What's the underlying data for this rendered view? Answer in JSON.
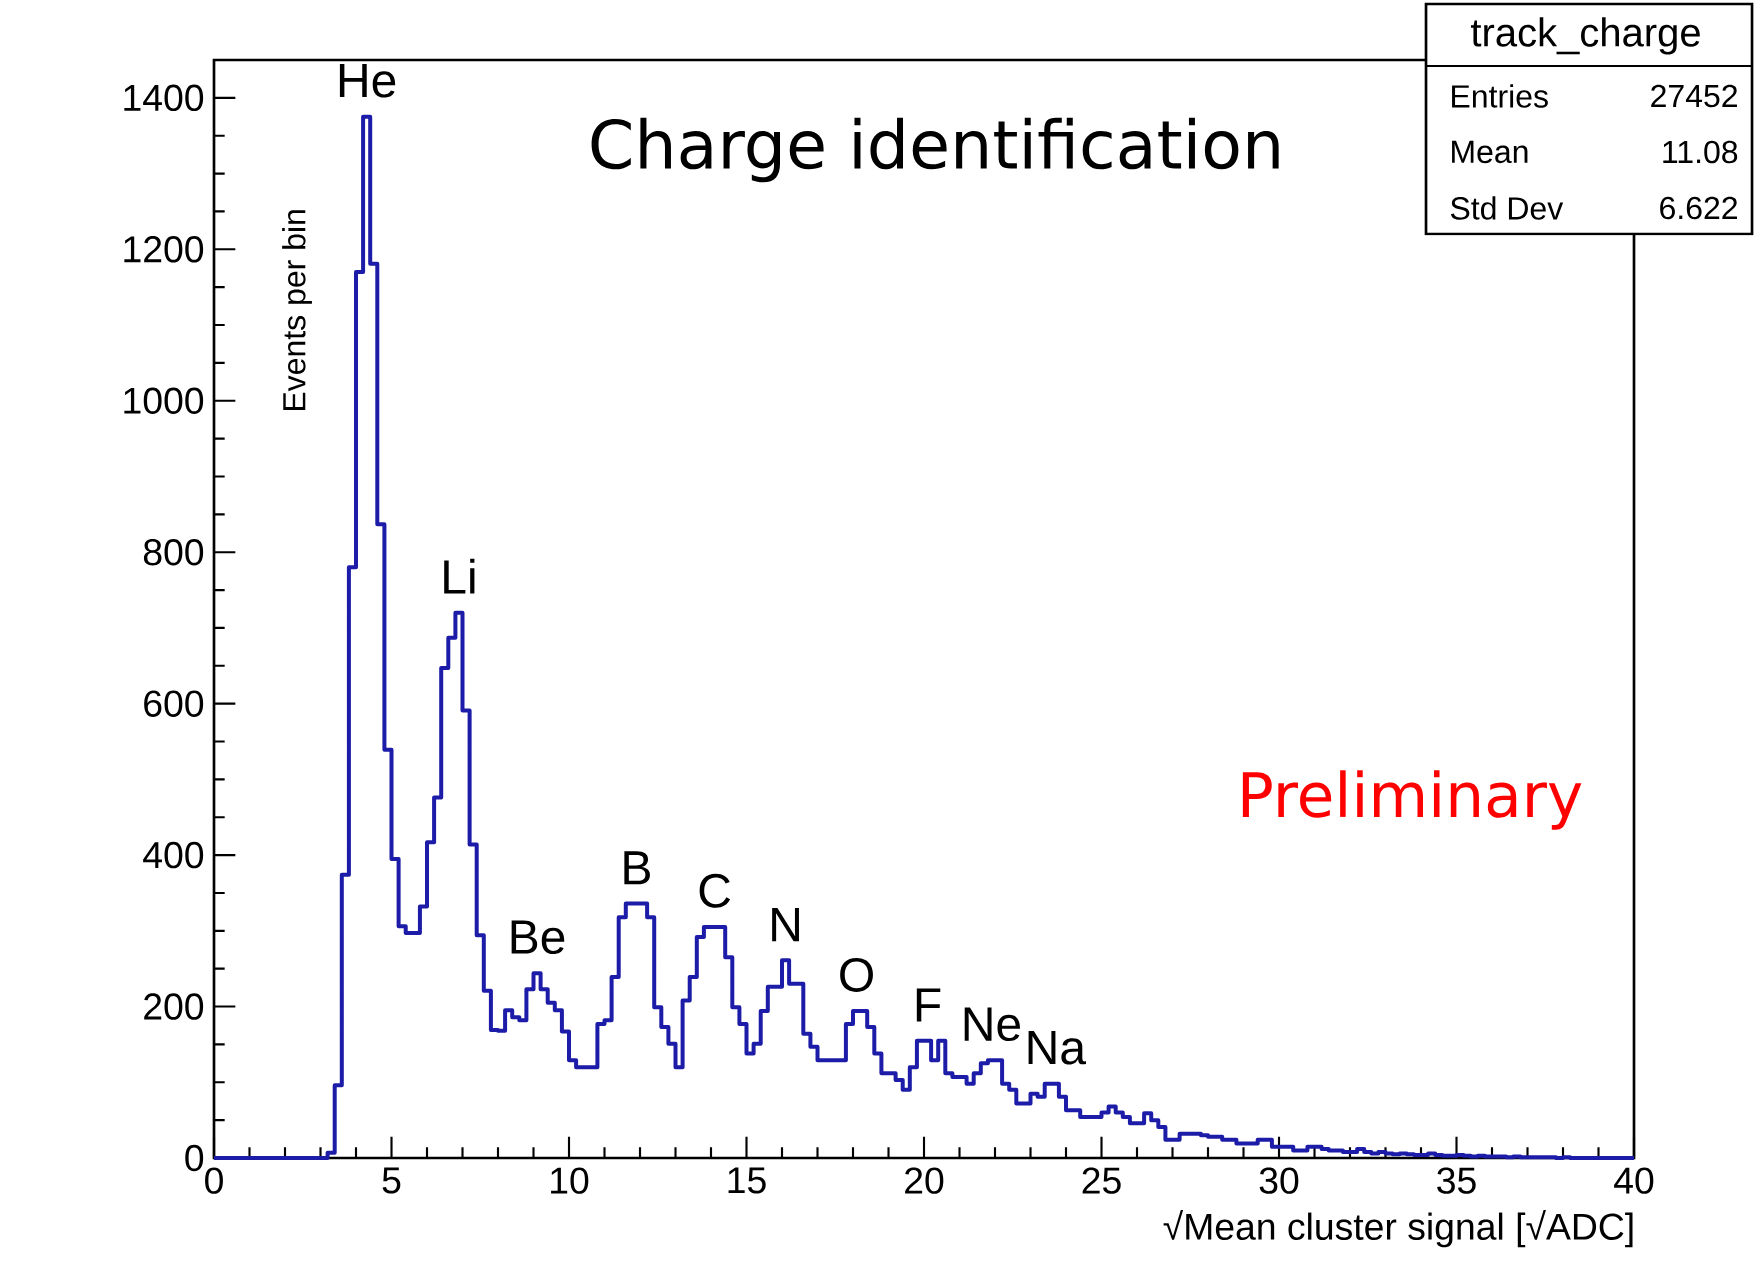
{
  "chart_data": {
    "type": "histogram",
    "title": "Charge identification",
    "xlabel": "√Mean cluster signal [√ADC]",
    "ylabel": "Events per bin",
    "color": "#1c1ca8",
    "bins": [
      0,
      0.2,
      0.4,
      0.6,
      0.8,
      1.0,
      1.2,
      1.4,
      1.6,
      1.8,
      2.0,
      2.2,
      2.4,
      2.6,
      2.8,
      3.0,
      3.2,
      3.4,
      3.6,
      3.8,
      4.0,
      4.2,
      4.4,
      4.6,
      4.8,
      5.0,
      5.2,
      5.4,
      5.6,
      5.8,
      6.0,
      6.2,
      6.4,
      6.6,
      6.8,
      7.0,
      7.2,
      7.4,
      7.6,
      7.8,
      8.0,
      8.2,
      8.4,
      8.6,
      8.8,
      9.0,
      9.2,
      9.4,
      9.6,
      9.8,
      10.0,
      10.2,
      10.4,
      10.6,
      10.8,
      11.0,
      11.2,
      11.4,
      11.6,
      11.8,
      12.0,
      12.2,
      12.4,
      12.6,
      12.8,
      13.0,
      13.2,
      13.4,
      13.6,
      13.8,
      14.0,
      14.2,
      14.4,
      14.6,
      14.8,
      15.0,
      15.2,
      15.4,
      15.6,
      15.8,
      16.0,
      16.2,
      16.4,
      16.6,
      16.8,
      17.0,
      17.2,
      17.4,
      17.6,
      17.8,
      18.0,
      18.2,
      18.4,
      18.6,
      18.8,
      19.0,
      19.2,
      19.4,
      19.6,
      19.8,
      20.0,
      20.2,
      20.4,
      20.6,
      20.8,
      21.0,
      21.2,
      21.4,
      21.6,
      21.8,
      22.0,
      22.2,
      22.4,
      22.6,
      22.8,
      23.0,
      23.2,
      23.4,
      23.6,
      23.8,
      24.0,
      24.2,
      24.4,
      24.6,
      24.8,
      25.0,
      25.2,
      25.4,
      25.6,
      25.8,
      26.0,
      26.2,
      26.4,
      26.6,
      26.8,
      27.0,
      27.2,
      27.4,
      27.6,
      27.8,
      28.0,
      28.2,
      28.4,
      28.6,
      28.8,
      29.0,
      29.2,
      29.4,
      29.6,
      29.8,
      30.0,
      30.2,
      30.4,
      30.6,
      30.8,
      31.0,
      31.2,
      31.4,
      31.6,
      31.8,
      32.0,
      32.2,
      32.4,
      32.6,
      32.8,
      33.0,
      33.2,
      33.4,
      33.6,
      33.8,
      34.0,
      34.2,
      34.4,
      34.6,
      34.8,
      35.0,
      35.2,
      35.4,
      35.6,
      35.8,
      36.0,
      36.2,
      36.4,
      36.6,
      36.8,
      37.0,
      37.2,
      37.4,
      37.6,
      37.8,
      38.0,
      38.2,
      38.4,
      38.6,
      38.8,
      39.0,
      39.2,
      39.4,
      39.6,
      39.8,
      40.0
    ],
    "values": [
      0,
      0,
      0,
      0,
      0,
      0,
      0,
      0,
      0,
      0,
      0,
      0,
      0,
      0,
      0,
      0,
      7,
      96,
      374,
      780,
      1170,
      1375,
      1181,
      837,
      539,
      395,
      306,
      297,
      297,
      332,
      417,
      476,
      647,
      687,
      720,
      591,
      414,
      294,
      221,
      169,
      168,
      195,
      186,
      182,
      223,
      244,
      223,
      205,
      195,
      167,
      129,
      120,
      120,
      120,
      177,
      182,
      239,
      318,
      336,
      336,
      336,
      318,
      199,
      173,
      151,
      120,
      208,
      239,
      292,
      305,
      305,
      305,
      265,
      199,
      177,
      138,
      151,
      194,
      226,
      226,
      261,
      230,
      230,
      164,
      147,
      129,
      129,
      129,
      129,
      177,
      194,
      194,
      173,
      138,
      112,
      112,
      103,
      90,
      120,
      155,
      155,
      129,
      155,
      112,
      107,
      107,
      98,
      112,
      125,
      129,
      129,
      98,
      90,
      72,
      72,
      85,
      81,
      98,
      98,
      81,
      63,
      63,
      54,
      54,
      54,
      60,
      68,
      60,
      54,
      46,
      46,
      59,
      50,
      41,
      24,
      24,
      32,
      32,
      32,
      30,
      28,
      28,
      24,
      24,
      19,
      19,
      19,
      24,
      24,
      15,
      15,
      15,
      10,
      10,
      15,
      15,
      12,
      10,
      10,
      8,
      8,
      12,
      8,
      6,
      8,
      6,
      5,
      6,
      5,
      4,
      4,
      6,
      4,
      3,
      3,
      4,
      3,
      2,
      3,
      2,
      2,
      2,
      1,
      2,
      1,
      1,
      1,
      1,
      1,
      0,
      1,
      0,
      0,
      0,
      0,
      0,
      0,
      0,
      0,
      0
    ],
    "xlim": [
      0,
      40
    ],
    "ylim": [
      0,
      1450
    ],
    "xticks": [
      0,
      5,
      10,
      15,
      20,
      25,
      30,
      35,
      40
    ],
    "yticks": [
      0,
      200,
      400,
      600,
      800,
      1000,
      1200,
      1400
    ],
    "annotations": [
      "Preliminary",
      "track_charge",
      "Entries",
      "27452",
      "Mean",
      "11.08",
      "Std Dev",
      "6.622",
      {
        "text": "He",
        "x": 4.3,
        "y": 1375
      },
      {
        "text": "Li",
        "x": 6.9,
        "y": 720
      },
      {
        "text": "Be",
        "x": 9.1,
        "y": 244
      },
      {
        "text": "B",
        "x": 11.9,
        "y": 336
      },
      {
        "text": "C",
        "x": 14.1,
        "y": 305
      },
      {
        "text": "N",
        "x": 16.1,
        "y": 261
      },
      {
        "text": "O",
        "x": 18.1,
        "y": 194
      },
      {
        "text": "F",
        "x": 20.1,
        "y": 155
      },
      {
        "text": "Ne",
        "x": 21.9,
        "y": 129
      },
      {
        "text": "Na",
        "x": 23.7,
        "y": 98
      }
    ]
  }
}
